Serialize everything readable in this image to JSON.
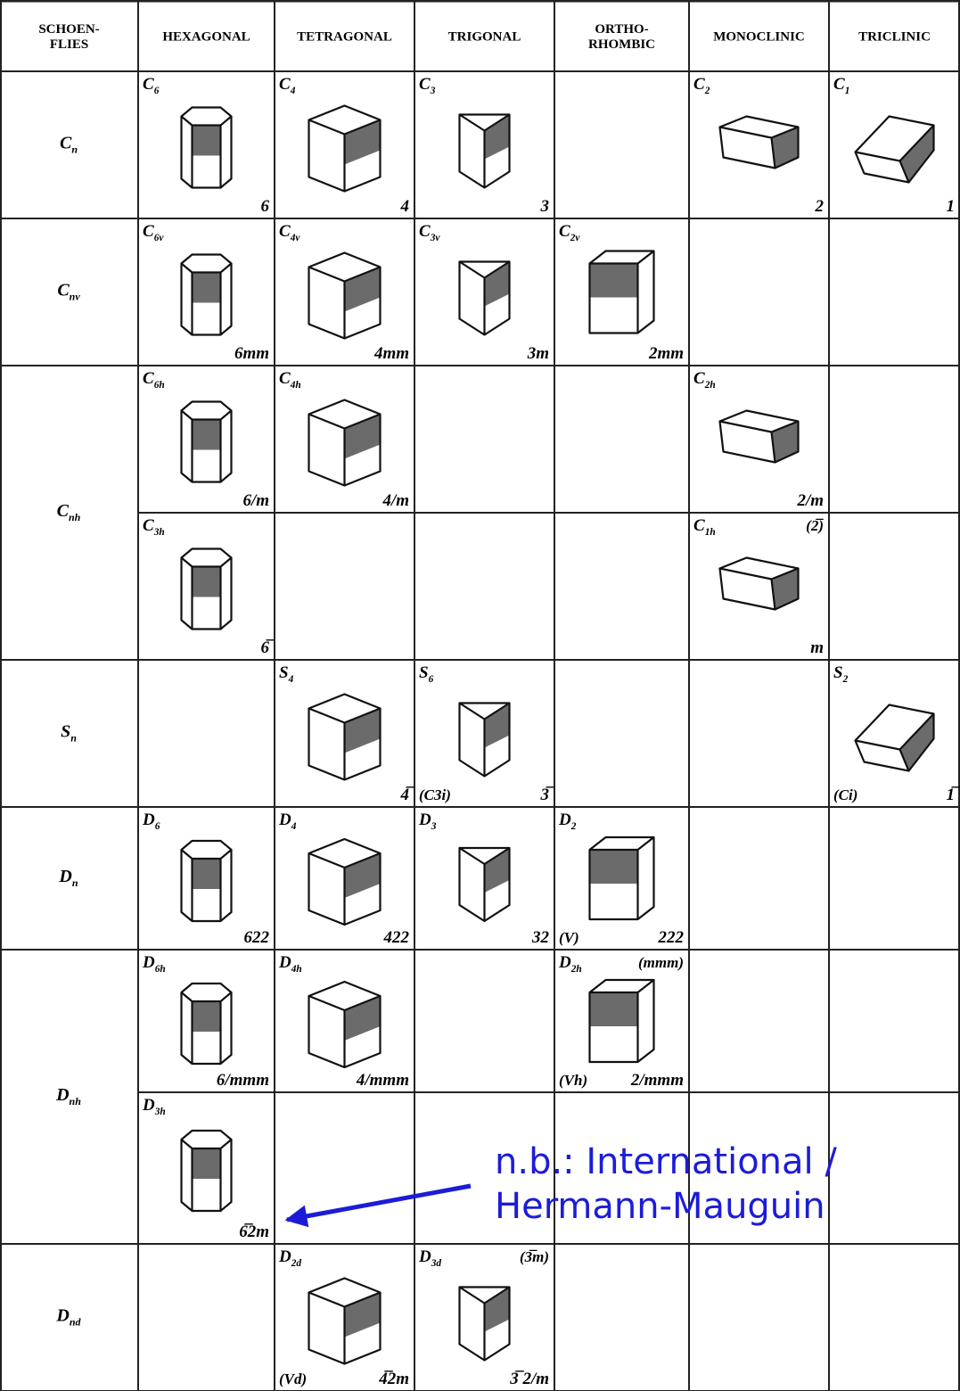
{
  "header": {
    "columns": [
      [
        "SCHOEN-",
        "FLIES"
      ],
      [
        "HEXAGONAL"
      ],
      [
        "TETRAGONAL"
      ],
      [
        "TRIGONAL"
      ],
      [
        "ORTHO-",
        "RHOMBIC"
      ],
      [
        "MONOCLINIC"
      ],
      [
        "TRICLINIC"
      ]
    ]
  },
  "groups": [
    {
      "sym": "C",
      "sub": "n"
    },
    {
      "sym": "C",
      "sub": "nv"
    },
    {
      "sym": "C",
      "sub": "nh"
    },
    {
      "sym": "S",
      "sub": "n"
    },
    {
      "sym": "D",
      "sub": "n"
    },
    {
      "sym": "D",
      "sub": "nh"
    },
    {
      "sym": "D",
      "sub": "nd"
    }
  ],
  "rows": [
    {
      "cells": [
        {
          "sym": "C",
          "sub": "6",
          "intl": "6"
        },
        {
          "sym": "C",
          "sub": "4",
          "intl": "4"
        },
        {
          "sym": "C",
          "sub": "3",
          "intl": "3"
        },
        null,
        {
          "sym": "C",
          "sub": "2",
          "intl": "2"
        },
        {
          "sym": "C",
          "sub": "1",
          "intl": "1"
        }
      ]
    },
    {
      "cells": [
        {
          "sym": "C",
          "sub": "6v",
          "intl": "6mm"
        },
        {
          "sym": "C",
          "sub": "4v",
          "intl": "4mm"
        },
        {
          "sym": "C",
          "sub": "3v",
          "intl": "3m"
        },
        {
          "sym": "C",
          "sub": "2v",
          "intl": "2mm"
        },
        null,
        null
      ]
    },
    {
      "cells": [
        {
          "sym": "C",
          "sub": "6h",
          "intl": "6/m"
        },
        {
          "sym": "C",
          "sub": "4h",
          "intl": "4/m"
        },
        null,
        null,
        {
          "sym": "C",
          "sub": "2h",
          "intl": "2/m"
        },
        null
      ]
    },
    {
      "cells": [
        {
          "sym": "C",
          "sub": "3h",
          "intl": "6̅"
        },
        null,
        null,
        null,
        {
          "sym": "C",
          "sub": "1h",
          "intl": "m",
          "alt_top": "(2̅)"
        },
        null
      ]
    },
    {
      "cells": [
        null,
        {
          "sym": "S",
          "sub": "4",
          "intl": "4̅"
        },
        {
          "sym": "S",
          "sub": "6",
          "intl": "3̅",
          "alt_bottom": "(C3i)"
        },
        null,
        null,
        {
          "sym": "S",
          "sub": "2",
          "intl": "1̅",
          "alt_bottom": "(Ci)"
        }
      ]
    },
    {
      "cells": [
        {
          "sym": "D",
          "sub": "6",
          "intl": "622"
        },
        {
          "sym": "D",
          "sub": "4",
          "intl": "422"
        },
        {
          "sym": "D",
          "sub": "3",
          "intl": "32"
        },
        {
          "sym": "D",
          "sub": "2",
          "intl": "222",
          "alt_bottom": "(V)"
        },
        null,
        null
      ]
    },
    {
      "cells": [
        {
          "sym": "D",
          "sub": "6h",
          "intl": "6/mmm"
        },
        {
          "sym": "D",
          "sub": "4h",
          "intl": "4/mmm"
        },
        null,
        {
          "sym": "D",
          "sub": "2h",
          "intl": "2/mmm",
          "alt_top": "(mmm)",
          "alt_bottom": "(Vh)"
        },
        null,
        null
      ]
    },
    {
      "cells": [
        {
          "sym": "D",
          "sub": "3h",
          "intl": "6̅2m"
        },
        null,
        null,
        null,
        null,
        null
      ]
    },
    {
      "cells": [
        null,
        {
          "sym": "D",
          "sub": "2d",
          "intl": "4̅2m",
          "alt_bottom": "(Vd)"
        },
        {
          "sym": "D",
          "sub": "3d",
          "intl": "3̅ 2/m",
          "alt_top": "(3̅m)"
        },
        null,
        null,
        null
      ]
    }
  ],
  "annotation": {
    "lines": [
      "n.b.: International /",
      "Hermann-Mauguin"
    ]
  }
}
